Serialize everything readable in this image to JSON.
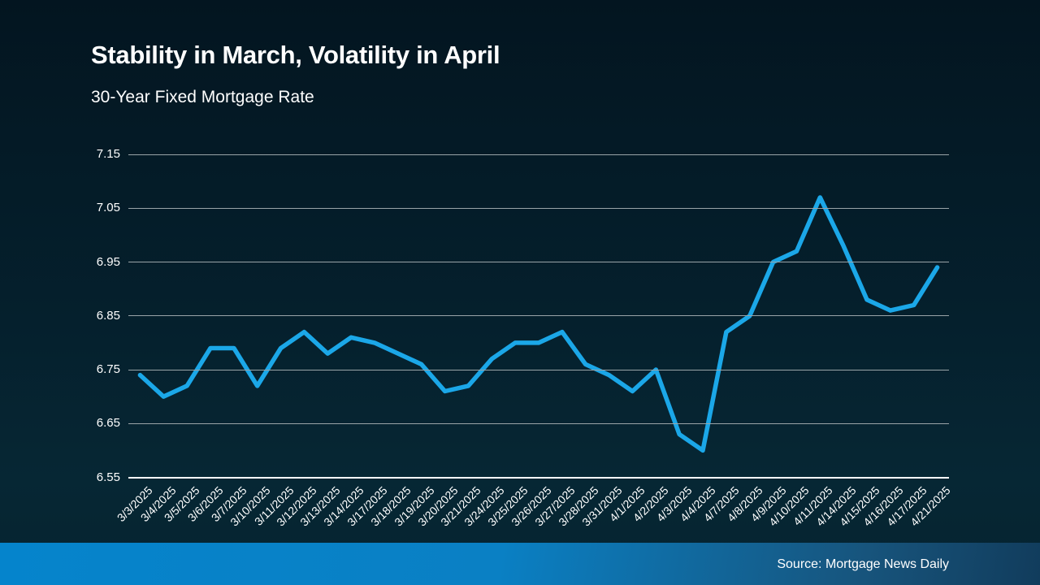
{
  "header": {
    "title": "Stability in March, Volatility in April",
    "subtitle": "30-Year Fixed Mortgage Rate"
  },
  "footer": {
    "source": "Source: Mortgage News Daily"
  },
  "colors": {
    "background": "#041b27",
    "line": "#1ba7e8",
    "gridline": "#9aa4a8",
    "axis_line": "#ffffff",
    "text": "#ffffff",
    "footer_bar_left": "#0584cc",
    "footer_bar_right": "#113c5c"
  },
  "chart_data": {
    "type": "line",
    "title": "Stability in March, Volatility in April",
    "subtitle": "30-Year Fixed Mortgage Rate",
    "xlabel": "",
    "ylabel": "",
    "legend_position": "none",
    "grid": true,
    "ylim": [
      6.55,
      7.15
    ],
    "yticks": [
      6.55,
      6.65,
      6.75,
      6.85,
      6.95,
      7.05,
      7.15
    ],
    "x": [
      "3/3/2025",
      "3/4/2025",
      "3/5/2025",
      "3/6/2025",
      "3/7/2025",
      "3/10/2025",
      "3/11/2025",
      "3/12/2025",
      "3/13/2025",
      "3/14/2025",
      "3/17/2025",
      "3/18/2025",
      "3/19/2025",
      "3/20/2025",
      "3/21/2025",
      "3/24/2025",
      "3/25/2025",
      "3/26/2025",
      "3/27/2025",
      "3/28/2025",
      "3/31/2025",
      "4/1/2025",
      "4/2/2025",
      "4/3/2025",
      "4/4/2025",
      "4/7/2025",
      "4/8/2025",
      "4/9/2025",
      "4/10/2025",
      "4/11/2025",
      "4/14/2025",
      "4/15/2025",
      "4/16/2025",
      "4/17/2025",
      "4/21/2025"
    ],
    "series": [
      {
        "name": "30-Year Fixed Mortgage Rate",
        "values": [
          6.74,
          6.7,
          6.72,
          6.79,
          6.79,
          6.72,
          6.79,
          6.82,
          6.78,
          6.81,
          6.8,
          6.78,
          6.76,
          6.71,
          6.72,
          6.77,
          6.8,
          6.8,
          6.82,
          6.76,
          6.74,
          6.71,
          6.75,
          6.63,
          6.6,
          6.82,
          6.85,
          6.95,
          6.97,
          7.07,
          6.98,
          6.88,
          6.86,
          6.87,
          6.94
        ]
      }
    ],
    "line_color": "#1ba7e8"
  }
}
